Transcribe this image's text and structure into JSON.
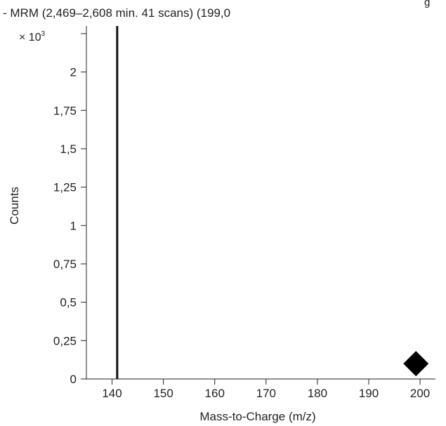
{
  "chart_data": {
    "type": "bar",
    "title": "- MRM (2,469–2,608 min. 41 scans) (199,0",
    "corner_note": "g",
    "xlabel": "Mass-to-Charge (m/z)",
    "ylabel": "Counts",
    "y_multiplier_prefix": "× 10",
    "y_multiplier_exp": "3",
    "xlim": [
      135,
      203
    ],
    "ylim": [
      0,
      2.3
    ],
    "xticks": [
      {
        "value": 140,
        "label": "140"
      },
      {
        "value": 150,
        "label": "150"
      },
      {
        "value": 160,
        "label": "160"
      },
      {
        "value": 170,
        "label": "170"
      },
      {
        "value": 180,
        "label": "180"
      },
      {
        "value": 190,
        "label": "190"
      },
      {
        "value": 200,
        "label": "200"
      }
    ],
    "yticks": [
      {
        "value": 0,
        "label": "0"
      },
      {
        "value": 0.25,
        "label": "0,25"
      },
      {
        "value": 0.5,
        "label": "0,5"
      },
      {
        "value": 0.75,
        "label": "0,75"
      },
      {
        "value": 1,
        "label": "1"
      },
      {
        "value": 1.25,
        "label": "1,25"
      },
      {
        "value": 1.5,
        "label": "1,5"
      },
      {
        "value": 1.75,
        "label": "1,75"
      },
      {
        "value": 2,
        "label": "2"
      },
      {
        "value": 2.25,
        "label": ""
      }
    ],
    "peaks": [
      {
        "x": 141,
        "y": 2.3
      }
    ],
    "markers": [
      {
        "x": 199.2,
        "y": 0.1,
        "shape": "diamond"
      }
    ],
    "grid": false,
    "legend": "none",
    "colors": {
      "line": "#111111",
      "text": "#222222"
    }
  }
}
